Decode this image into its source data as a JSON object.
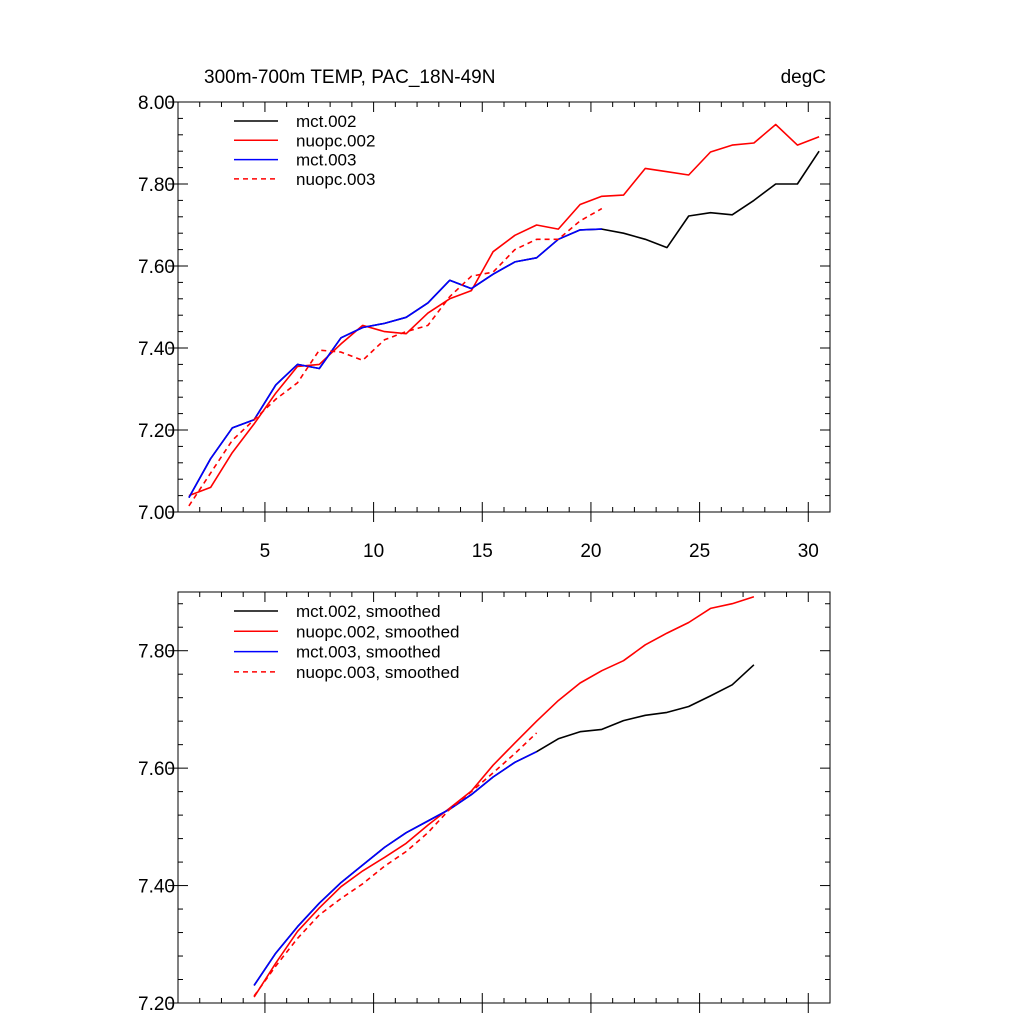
{
  "chart_data": [
    {
      "type": "line",
      "title": "300m-700m TEMP, PAC_18N-49N",
      "units": "degC",
      "xlim": [
        1,
        31
      ],
      "ylim": [
        7.0,
        8.0
      ],
      "x_ticks": [
        5,
        10,
        15,
        20,
        25,
        30
      ],
      "y_ticks": [
        7.0,
        7.2,
        7.4,
        7.6,
        7.8,
        8.0
      ],
      "y_tick_labels": [
        "7.00",
        "7.20",
        "7.40",
        "7.60",
        "7.80",
        "8.00"
      ],
      "grid": false,
      "legend_position": "top-left",
      "series": [
        {
          "name": "mct.002",
          "color": "#000000",
          "dash": "solid",
          "x": [
            1.5,
            2.5,
            3.5,
            4.5,
            5.5,
            6.5,
            7.5,
            8.5,
            9.5,
            10.5,
            11.5,
            12.5,
            13.5,
            14.5,
            15.5,
            16.5,
            17.5,
            18.5,
            19.5,
            20.5,
            21.5,
            22.5,
            23.5,
            24.5,
            25.5,
            26.5,
            27.5,
            28.5,
            29.5,
            30.5
          ],
          "y": [
            7.035,
            7.13,
            7.205,
            7.225,
            7.31,
            7.36,
            7.35,
            7.425,
            7.45,
            7.46,
            7.475,
            7.51,
            7.565,
            7.545,
            7.58,
            7.61,
            7.62,
            7.665,
            7.688,
            7.69,
            7.68,
            7.665,
            7.645,
            7.722,
            7.73,
            7.725,
            7.76,
            7.8,
            7.8,
            7.88
          ]
        },
        {
          "name": "nuopc.002",
          "color": "#ff0000",
          "dash": "solid",
          "x": [
            1.5,
            2.5,
            3.5,
            4.5,
            5.5,
            6.5,
            7.5,
            8.5,
            9.5,
            10.5,
            11.5,
            12.5,
            13.5,
            14.5,
            15.5,
            16.5,
            17.5,
            18.5,
            19.5,
            20.5,
            21.5,
            22.5,
            23.5,
            24.5,
            25.5,
            26.5,
            27.5,
            28.5,
            29.5,
            30.5
          ],
          "y": [
            7.04,
            7.06,
            7.145,
            7.215,
            7.29,
            7.355,
            7.36,
            7.41,
            7.455,
            7.44,
            7.435,
            7.485,
            7.52,
            7.54,
            7.635,
            7.675,
            7.7,
            7.69,
            7.75,
            7.77,
            7.773,
            7.838,
            7.83,
            7.822,
            7.878,
            7.895,
            7.9,
            7.945,
            7.895,
            7.915
          ]
        },
        {
          "name": "mct.003",
          "color": "#0000ff",
          "dash": "solid",
          "x": [
            1.5,
            2.5,
            3.5,
            4.5,
            5.5,
            6.5,
            7.5,
            8.5,
            9.5,
            10.5,
            11.5,
            12.5,
            13.5,
            14.5,
            15.5,
            16.5,
            17.5,
            18.5,
            19.5,
            20.5
          ],
          "y": [
            7.035,
            7.13,
            7.205,
            7.225,
            7.31,
            7.36,
            7.35,
            7.425,
            7.45,
            7.46,
            7.475,
            7.51,
            7.565,
            7.545,
            7.58,
            7.61,
            7.62,
            7.665,
            7.688,
            7.69
          ]
        },
        {
          "name": "nuopc.003",
          "color": "#ff0000",
          "dash": "dashed",
          "x": [
            1.5,
            2.5,
            3.5,
            4.5,
            5.5,
            6.5,
            7.5,
            8.5,
            9.5,
            10.5,
            11.5,
            12.5,
            13.5,
            14.5,
            15.5,
            16.5,
            17.5,
            18.5,
            19.5,
            20.5
          ],
          "y": [
            7.015,
            7.095,
            7.175,
            7.225,
            7.275,
            7.315,
            7.395,
            7.39,
            7.37,
            7.42,
            7.44,
            7.455,
            7.525,
            7.575,
            7.585,
            7.64,
            7.665,
            7.665,
            7.71,
            7.74
          ]
        }
      ]
    },
    {
      "type": "line",
      "xlim": [
        1,
        31
      ],
      "ylim": [
        7.2,
        7.9
      ],
      "x_ticks": [
        5,
        10,
        15,
        20,
        25,
        30
      ],
      "y_ticks": [
        7.2,
        7.4,
        7.6,
        7.8
      ],
      "y_tick_labels": [
        "7.20",
        "7.40",
        "7.60",
        "7.80"
      ],
      "grid": false,
      "legend_position": "top-left",
      "series": [
        {
          "name": "mct.002, smoothed",
          "color": "#000000",
          "dash": "solid",
          "x": [
            4.5,
            5.5,
            6.5,
            7.5,
            8.5,
            9.5,
            10.5,
            11.5,
            12.5,
            13.5,
            14.5,
            15.5,
            16.5,
            17.5,
            18.5,
            19.5,
            20.5,
            21.5,
            22.5,
            23.5,
            24.5,
            25.5,
            26.5,
            27.5
          ],
          "y": [
            7.23,
            7.285,
            7.33,
            7.37,
            7.405,
            7.435,
            7.465,
            7.49,
            7.51,
            7.53,
            7.555,
            7.585,
            7.61,
            7.628,
            7.65,
            7.662,
            7.666,
            7.681,
            7.69,
            7.695,
            7.705,
            7.723,
            7.742,
            7.776
          ]
        },
        {
          "name": "nuopc.002, smoothed",
          "color": "#ff0000",
          "dash": "solid",
          "x": [
            4.5,
            5.5,
            6.5,
            7.5,
            8.5,
            9.5,
            10.5,
            11.5,
            12.5,
            13.5,
            14.5,
            15.5,
            16.5,
            17.5,
            18.5,
            19.5,
            20.5,
            21.5,
            22.5,
            23.5,
            24.5,
            25.5,
            26.5,
            27.5
          ],
          "y": [
            7.21,
            7.268,
            7.322,
            7.362,
            7.398,
            7.425,
            7.448,
            7.472,
            7.503,
            7.532,
            7.561,
            7.605,
            7.643,
            7.68,
            7.715,
            7.745,
            7.766,
            7.783,
            7.81,
            7.83,
            7.848,
            7.872,
            7.88,
            7.892
          ]
        },
        {
          "name": "mct.003, smoothed",
          "color": "#0000ff",
          "dash": "solid",
          "x": [
            4.5,
            5.5,
            6.5,
            7.5,
            8.5,
            9.5,
            10.5,
            11.5,
            12.5,
            13.5,
            14.5,
            15.5,
            16.5,
            17.5
          ],
          "y": [
            7.23,
            7.285,
            7.33,
            7.37,
            7.405,
            7.435,
            7.465,
            7.49,
            7.51,
            7.53,
            7.555,
            7.585,
            7.61,
            7.628
          ]
        },
        {
          "name": "nuopc.003, smoothed",
          "color": "#ff0000",
          "dash": "dashed",
          "x": [
            4.5,
            5.5,
            6.5,
            7.5,
            8.5,
            9.5,
            10.5,
            11.5,
            12.5,
            13.5,
            14.5,
            15.5,
            16.5,
            17.5
          ],
          "y": [
            7.212,
            7.263,
            7.31,
            7.35,
            7.378,
            7.403,
            7.433,
            7.458,
            7.49,
            7.53,
            7.56,
            7.592,
            7.625,
            7.66
          ]
        }
      ]
    }
  ]
}
